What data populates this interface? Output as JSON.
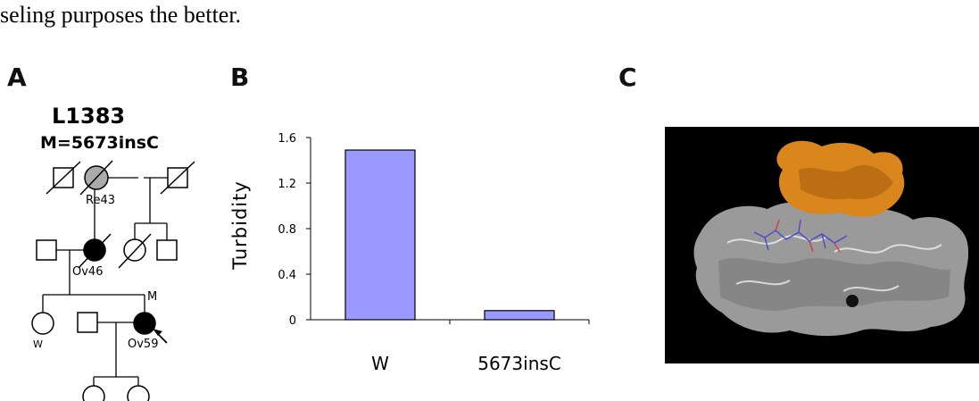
{
  "caption_fragment": "seling purposes the better.",
  "panels": {
    "a": "A",
    "b": "B",
    "c": "C"
  },
  "pedigree": {
    "family_id": "L1383",
    "mutation_label": "M=5673insC",
    "labels": {
      "re43": "Re43",
      "ov46": "Ov46",
      "ov59": "Ov59",
      "m": "M",
      "w": "W"
    }
  },
  "chart_data": {
    "type": "bar",
    "categories": [
      "W",
      "5673insC"
    ],
    "values": [
      1.49,
      0.08
    ],
    "title": "",
    "xlabel": "",
    "ylabel": "Turbidity",
    "ylim": [
      0,
      1.6
    ],
    "yticks": [
      0,
      0.4,
      0.8,
      1.2,
      1.6
    ],
    "ytick_labels": [
      "0",
      "0.4",
      "0.8",
      "1.2",
      "1.6"
    ],
    "bar_color": "#9999ff"
  },
  "colors": {
    "affected": "#000000",
    "obligate_carrier": "#aaaaaa",
    "protein_surface": "#9a9a9a",
    "protein_highlight": "#d9861c"
  }
}
